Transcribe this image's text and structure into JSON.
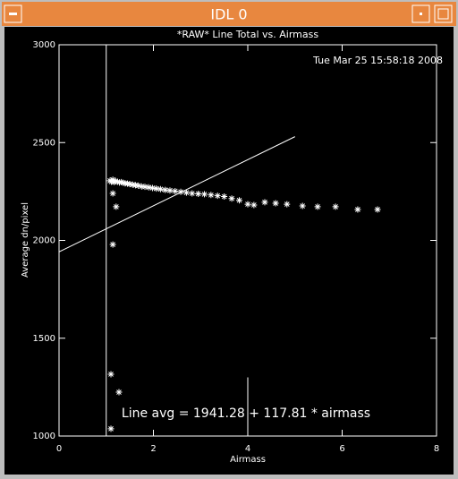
{
  "window": {
    "title": "IDL 0"
  },
  "chart_data": {
    "type": "scatter",
    "title": "*RAW* Line Total vs. Airmass",
    "timestamp": "Tue Mar 25 15:58:18 2008",
    "x_label": "Airmass",
    "y_label": "Average dn/pixel",
    "annotation": "Line avg = 1941.28 + 117.81 * airmass",
    "xlim": [
      0,
      8
    ],
    "xticks": [
      0,
      2,
      4,
      6,
      8
    ],
    "ylim": [
      1000,
      3000
    ],
    "yticks": [
      1000,
      1500,
      2000,
      2500,
      3000
    ],
    "color": "#ffffff",
    "x": [
      1.08,
      1.11,
      1.14,
      1.17,
      1.2,
      1.24,
      1.28,
      1.32,
      1.36,
      1.4,
      1.45,
      1.5,
      1.56,
      1.62,
      1.68,
      1.75,
      1.82,
      1.9,
      1.98,
      2.06,
      2.15,
      2.25,
      2.35,
      2.46,
      2.58,
      2.7,
      2.82,
      2.95,
      3.08,
      3.22,
      3.36,
      3.5,
      3.66,
      3.82,
      1.14,
      1.21,
      1.14,
      1.1,
      1.27,
      1.1,
      4.0,
      4.13,
      4.36,
      4.59,
      4.83,
      5.16,
      5.48,
      5.86,
      6.33,
      6.75
    ],
    "values": [
      2305,
      2300,
      2310,
      2298,
      2303,
      2300,
      2296,
      2298,
      2294,
      2292,
      2290,
      2288,
      2285,
      2282,
      2280,
      2276,
      2274,
      2271,
      2268,
      2265,
      2262,
      2258,
      2255,
      2252,
      2248,
      2244,
      2240,
      2238,
      2236,
      2232,
      2228,
      2224,
      2214,
      2205,
      2240,
      2172,
      1979,
      1316,
      1224,
      1037,
      2185,
      2181,
      2195,
      2190,
      2185,
      2176,
      2172,
      2172,
      2158,
      2158
    ],
    "fit": {
      "intercept": 1941.28,
      "slope": 117.81,
      "xlim": [
        0,
        5
      ]
    },
    "vertical_lines": [
      {
        "x": 1.0,
        "ylim": [
          1000,
          3000
        ]
      },
      {
        "x": 4.0,
        "ylim": [
          1000,
          1300
        ]
      }
    ]
  }
}
